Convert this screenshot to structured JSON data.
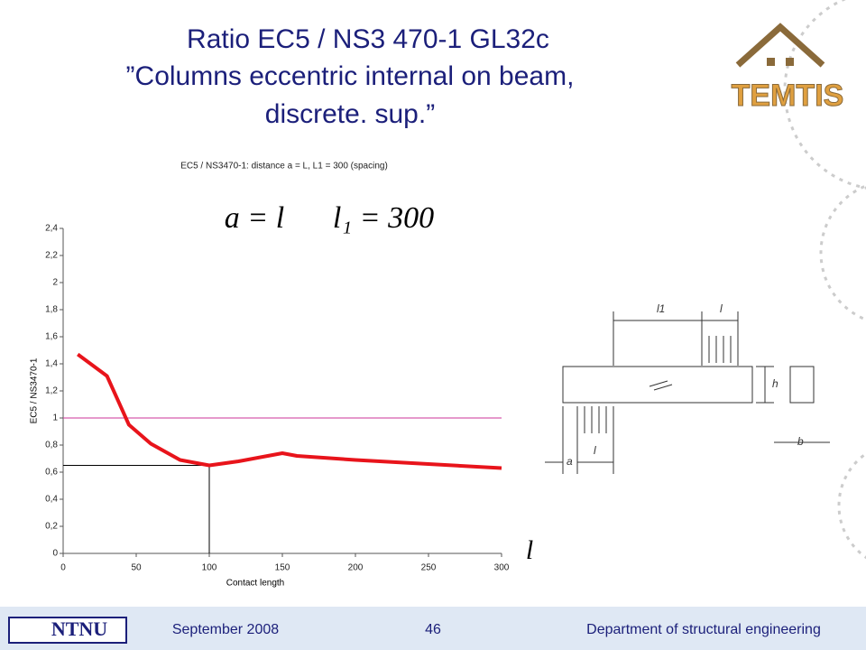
{
  "slide": {
    "title": [
      "Ratio  EC5 / NS3 470-1   GL32c",
      "”Columns eccentric internal  on beam,",
      "discrete.  sup.”"
    ],
    "logo": "TEMTIS",
    "footer": {
      "org": "NTNU",
      "date": "September 2008",
      "page": "46",
      "department": "Department of structural engineering"
    }
  },
  "diagram": {
    "labels": [
      "l1",
      "l",
      "h",
      "b",
      "a",
      "l"
    ]
  },
  "chart_data": {
    "type": "line",
    "title": "EC5 / NS3470-1:  distance a = L, L1 = 300 (spacing)",
    "annotations": [
      "a = l",
      "l₁ = 300",
      "l"
    ],
    "x_label": "Contact length",
    "y_label": "EC5 / NS3470-1",
    "xlim": [
      0,
      300
    ],
    "ylim": [
      0,
      2.4
    ],
    "xticks": [
      0,
      50,
      100,
      150,
      200,
      250,
      300
    ],
    "yticks": [
      0,
      {
        "value": 0.2,
        "label": "0,2"
      },
      {
        "value": 0.4,
        "label": "0,4"
      },
      {
        "value": 0.6,
        "label": "0,6"
      },
      {
        "value": 0.8,
        "label": "0,8"
      },
      1,
      {
        "value": 1.2,
        "label": "1,2"
      },
      {
        "value": 1.4,
        "label": "1,4"
      },
      {
        "value": 1.6,
        "label": "1,6"
      },
      {
        "value": 1.8,
        "label": "1,8"
      },
      2,
      {
        "value": 2.2,
        "label": "2,2"
      },
      {
        "value": 2.4,
        "label": "2,4"
      }
    ],
    "series": [
      {
        "color": "#e8141b",
        "x": [
          10,
          30,
          45,
          60,
          80,
          100,
          120,
          140,
          150,
          160,
          200,
          250,
          300
        ],
        "values": [
          1.47,
          1.31,
          0.95,
          0.81,
          0.69,
          0.65,
          0.68,
          0.72,
          0.74,
          0.72,
          0.69,
          0.66,
          0.63
        ]
      }
    ],
    "reference_line": {
      "y": 1,
      "color": "#cc3399"
    },
    "guide": {
      "x": 100,
      "y": 0.65,
      "color": "#000000"
    }
  }
}
